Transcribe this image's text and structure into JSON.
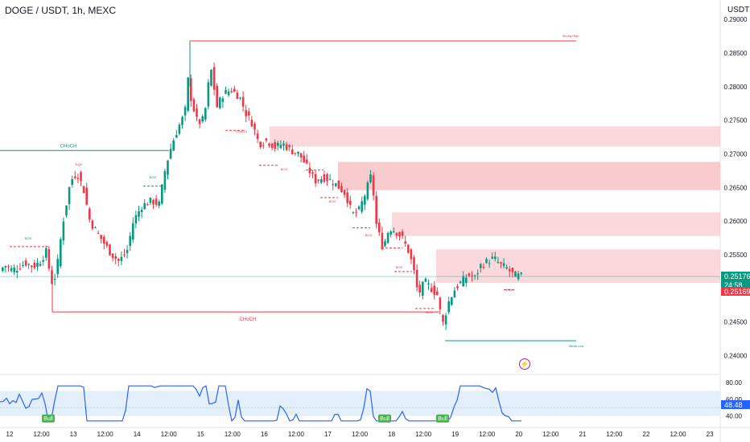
{
  "header": {
    "title": "DOGE / USDT, 1h, MEXC",
    "currency": "USDT"
  },
  "price_axis": {
    "ticks": [
      "0.29000",
      "0.28500",
      "0.28000",
      "0.27500",
      "0.27000",
      "0.26500",
      "0.26000",
      "0.25500",
      "0.25000",
      "0.24500",
      "0.24000"
    ],
    "last_price": "0.25176",
    "countdown": "24:58",
    "marker_price": "0.25169",
    "last_color": "#089981",
    "marker_color": "#f23645"
  },
  "time_axis": {
    "ticks": [
      "12",
      "12:00",
      "13",
      "12:00",
      "14",
      "12:00",
      "15",
      "12:00",
      "16",
      "12:00",
      "17",
      "12:00",
      "18",
      "12:00",
      "19",
      "12:00",
      "20",
      "12:00",
      "21",
      "12:00",
      "22",
      "12:00",
      "23"
    ]
  },
  "annotations": {
    "strong_high": "Strong High",
    "weak_low": "Weak Low",
    "choch_top": "CHoCH",
    "choch_bottom": "CHoCH",
    "bos": "BOS",
    "eqh": "EQH",
    "eql": "EQL",
    "choch_small": "CHoCH"
  },
  "rsi": {
    "ticks": [
      "80.00",
      "60.00",
      "40.00"
    ],
    "value": "48.48",
    "bull": "Bull",
    "value_color": "#2962ff",
    "line_color": "#2962ff",
    "bull_color": "#4caf50"
  },
  "chart_data": {
    "type": "candlestick",
    "title": "DOGE / USDT, 1h, MEXC",
    "ylabel": "USDT",
    "ylim": [
      0.2385,
      0.2905
    ],
    "x_day_labels": [
      "12",
      "13",
      "14",
      "15",
      "16",
      "17",
      "18",
      "19",
      "20",
      "21",
      "22",
      "23"
    ],
    "strong_high": 0.2868,
    "weak_low": 0.2422,
    "choch_level_top": 0.2705,
    "choch_level_bottom": 0.2465,
    "supply_zones": [
      [
        0.2711,
        0.2741
      ],
      [
        0.2646,
        0.2688
      ],
      [
        0.2578,
        0.2613
      ],
      [
        0.2508,
        0.2558
      ]
    ],
    "last_price": 0.25176,
    "rsi_value": 48.48,
    "rsi_ylim": [
      30,
      82
    ],
    "rsi_band": [
      40,
      70
    ],
    "colors": {
      "up": "#089981",
      "down": "#f23645",
      "zone": "#f8c8cc",
      "rsi": "#2962ff",
      "band": "#e3f0fc"
    }
  }
}
